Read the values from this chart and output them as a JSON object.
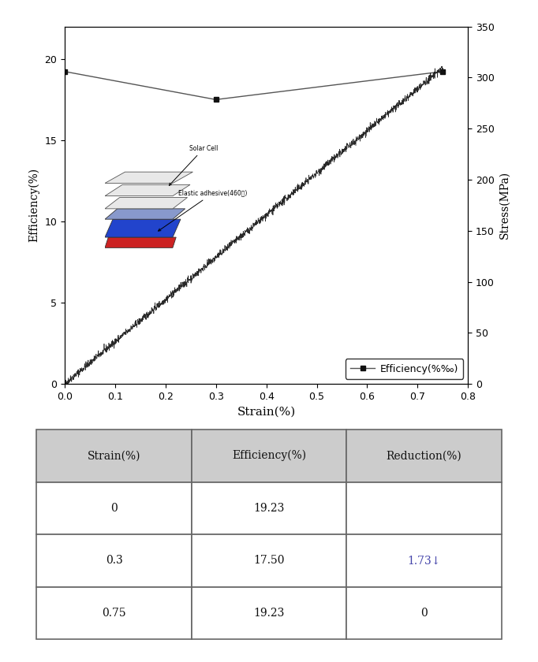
{
  "efficiency_strain": [
    0.0,
    0.3,
    0.75
  ],
  "efficiency_values": [
    19.23,
    17.5,
    19.23
  ],
  "stress_xlim": [
    0.0,
    0.8
  ],
  "stress_ylim": [
    0,
    350
  ],
  "efficiency_ylim": [
    0,
    22
  ],
  "ylabel_left": "Efficiency(%)",
  "ylabel_right": "Stress(MPa)",
  "xlabel": "Strain(%)",
  "xticks": [
    0.0,
    0.1,
    0.2,
    0.3,
    0.4,
    0.5,
    0.6,
    0.7,
    0.8
  ],
  "yticks_left": [
    0,
    5,
    10,
    15,
    20
  ],
  "yticks_right": [
    0,
    50,
    100,
    150,
    200,
    250,
    300,
    350
  ],
  "table_headers": [
    "Strain(%)",
    "Efficiency(%)",
    "Reduction(%)"
  ],
  "table_rows": [
    [
      "0",
      "19.23",
      ""
    ],
    [
      "0.3",
      "17.50",
      "1.73↓"
    ],
    [
      "0.75",
      "19.23",
      "0"
    ]
  ],
  "table_reduction_color": "#4444aa",
  "inset_label1": "Solar Cell",
  "inset_label2": "Elastic adhesive(460㎦)",
  "bg_color": "#ffffff",
  "legend_label": "Efficiency(%‰)",
  "stress_slope": 413.0,
  "stress_noise_std": 1.8,
  "stress_n_points": 2000
}
